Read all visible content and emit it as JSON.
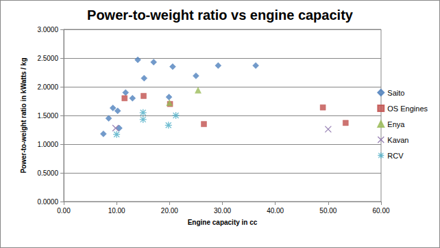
{
  "chart_data": {
    "type": "scatter",
    "title": "Power-to-weight ratio vs engine capacity",
    "x_label": "Engine capacity in cc",
    "y_label": "Power-to-weight ratio in kWatts / kg",
    "xlim": [
      0,
      60
    ],
    "xticks": [
      {
        "value": 0,
        "label": "0.00"
      },
      {
        "value": 10,
        "label": "10.00"
      },
      {
        "value": 20,
        "label": "20.00"
      },
      {
        "value": 30,
        "label": "30.00"
      },
      {
        "value": 40,
        "label": "40.00"
      },
      {
        "value": 50,
        "label": "50.00"
      },
      {
        "value": 60,
        "label": "60.00"
      }
    ],
    "ylim": [
      0,
      3
    ],
    "yticks": [
      {
        "value": 0,
        "label": "0.0000"
      },
      {
        "value": 0.5,
        "label": "0.5000"
      },
      {
        "value": 1,
        "label": "1.0000"
      },
      {
        "value": 1.5,
        "label": "1.5000"
      },
      {
        "value": 2,
        "label": "2.0000"
      },
      {
        "value": 2.5,
        "label": "2.5000"
      },
      {
        "value": 3,
        "label": "3.0000"
      }
    ],
    "grid": true,
    "legend": "right",
    "series": [
      {
        "name": "Saito",
        "color": "#4f81bd",
        "marker": "diamond",
        "x": [
          7.5,
          8.5,
          9.3,
          10.2,
          10.5,
          11.7,
          13.0,
          14.0,
          15.2,
          17.0,
          19.9,
          20.6,
          25.0,
          29.2,
          36.3
        ],
        "values": [
          1.18,
          1.45,
          1.63,
          1.58,
          1.28,
          1.9,
          1.8,
          2.47,
          2.15,
          2.43,
          1.82,
          2.35,
          2.19,
          2.37,
          2.37
        ]
      },
      {
        "name": "OS Engines",
        "color": "#c0504d",
        "marker": "square",
        "x": [
          11.5,
          15.1,
          20.1,
          26.5,
          49.0,
          53.3
        ],
        "values": [
          1.8,
          1.84,
          1.7,
          1.35,
          1.64,
          1.37
        ]
      },
      {
        "name": "Enya",
        "color": "#9bbb59",
        "marker": "triangle",
        "x": [
          20.0,
          25.4
        ],
        "values": [
          1.72,
          1.94
        ]
      },
      {
        "name": "Kavan",
        "color": "#8064a2",
        "marker": "x",
        "x": [
          9.8,
          50.0
        ],
        "values": [
          1.28,
          1.26
        ]
      },
      {
        "name": "RCV",
        "color": "#4bacc6",
        "marker": "star",
        "x": [
          10.0,
          15.0,
          15.0,
          19.8,
          21.2
        ],
        "values": [
          1.17,
          1.55,
          1.43,
          1.33,
          1.5
        ]
      }
    ]
  }
}
